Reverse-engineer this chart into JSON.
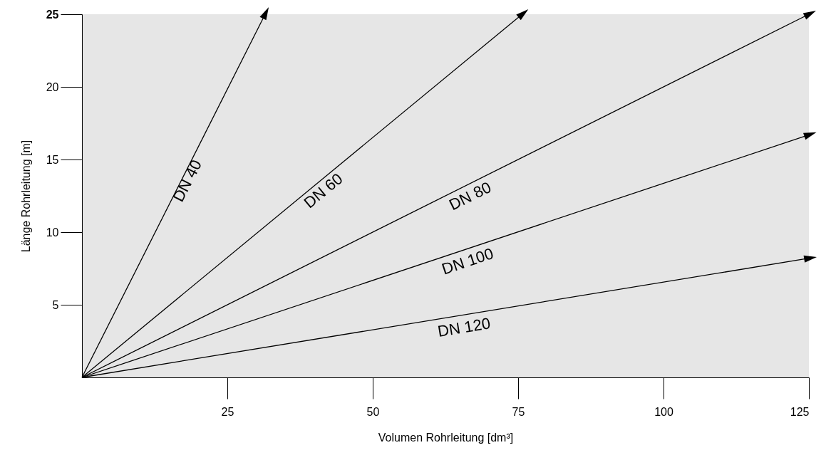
{
  "chart_data": {
    "type": "line",
    "xlabel": "Volumen Rohrleitung [dm³]",
    "ylabel": "Länge Rohrleitung [m]",
    "series": [
      {
        "name": "DN 40",
        "color": "#000000",
        "x": [
          0,
          31.5
        ],
        "values": [
          0,
          25
        ]
      },
      {
        "name": "DN 60",
        "color": "#000000",
        "x": [
          0,
          75.7
        ],
        "values": [
          0,
          25
        ]
      },
      {
        "name": "DN 80",
        "color": "#000000",
        "x": [
          0,
          125
        ],
        "values": [
          0,
          25
        ]
      },
      {
        "name": "DN 100",
        "color": "#000000",
        "x": [
          0,
          125
        ],
        "values": [
          0,
          16.7
        ]
      },
      {
        "name": "DN 120",
        "color": "#000000",
        "x": [
          0,
          125
        ],
        "values": [
          0,
          8.2
        ]
      }
    ],
    "xlim": [
      0,
      125
    ],
    "ylim": [
      0,
      25
    ],
    "xticks": [
      25,
      50,
      75,
      100,
      125
    ],
    "yticks": [
      5,
      10,
      15,
      20,
      25
    ],
    "grid": false,
    "line_style": "solid"
  }
}
